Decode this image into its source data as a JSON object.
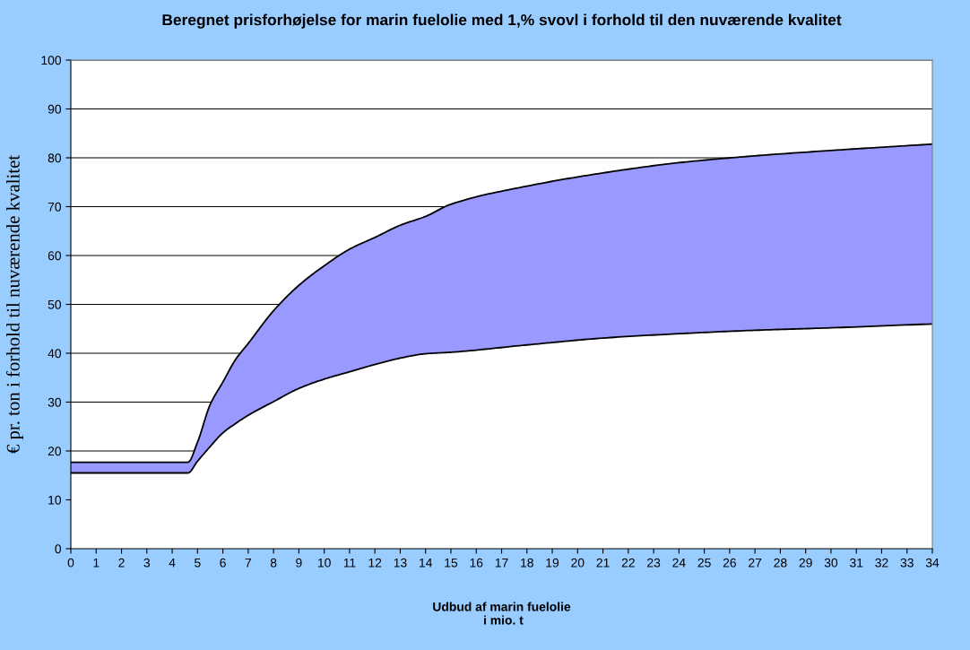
{
  "chart_data": {
    "type": "area",
    "stacked": true,
    "title": "Beregnet prisforhøjelse for marin fuelolie med 1,% svovl i forhold til den nuværende kvalitet",
    "xlabel": "Udbud af marin fuelolie\n i mio. t",
    "ylabel": "€ pr. ton i forhold til nuværende kvalitet",
    "x": [
      0,
      4.62,
      5,
      5.5,
      6,
      6.5,
      7,
      8,
      9,
      10,
      11,
      12,
      13,
      14,
      15,
      18,
      21,
      24,
      27,
      30,
      34
    ],
    "series": [
      {
        "color": "#ffffff",
        "values": [
          15.5,
          15.5,
          17.9,
          20.9,
          23.7,
          25.6,
          27.3,
          30.1,
          32.8,
          34.7,
          36.2,
          37.7,
          39.0,
          39.9,
          40.2,
          41.7,
          43.1,
          44.0,
          44.7,
          45.2,
          46.0
        ]
      },
      {
        "color": "#9999ff",
        "values": [
          2.2,
          2.2,
          3.9,
          8.6,
          10.4,
          13.1,
          14.7,
          18.6,
          21.1,
          23.2,
          25.1,
          26.0,
          27.2,
          28.1,
          30.3,
          32.5,
          33.8,
          35.0,
          35.7,
          36.3,
          36.8
        ]
      }
    ],
    "xlim": [
      0,
      34
    ],
    "xticks": [
      0,
      1,
      2,
      3,
      4,
      5,
      6,
      7,
      8,
      9,
      10,
      11,
      12,
      13,
      14,
      15,
      16,
      17,
      18,
      19,
      20,
      21,
      22,
      23,
      24,
      25,
      26,
      27,
      28,
      29,
      30,
      31,
      32,
      33,
      34
    ],
    "ylim": [
      0,
      100
    ],
    "yticks": [
      0,
      10,
      20,
      30,
      40,
      50,
      60,
      70,
      80,
      90,
      100
    ],
    "grid": "y",
    "legend": false
  }
}
